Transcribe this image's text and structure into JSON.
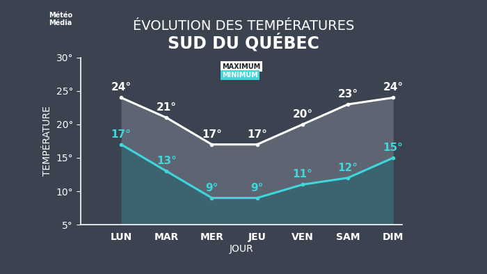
{
  "chart_data": {
    "type": "line",
    "title": "ÉVOLUTION DES TEMPÉRATURES",
    "subtitle": "SUD DU QUÉBEC",
    "x_label": "JOUR",
    "y_label": "TEMPÉRATURE",
    "annotations": [
      "Météo\nMédia"
    ],
    "categories": [
      "LUN",
      "MAR",
      "MER",
      "JEU",
      "VEN",
      "SAM",
      "DIM"
    ],
    "series": [
      {
        "name": "MAXIMUM",
        "color": "#ffffff",
        "values": [
          24,
          21,
          17,
          17,
          20,
          23,
          24
        ],
        "value_labels": [
          "24°",
          "21°",
          "17°",
          "17°",
          "20°",
          "23°",
          "24°"
        ]
      },
      {
        "name": "MINIMUM",
        "color": "#3fd6dc",
        "values": [
          17,
          13,
          9,
          9,
          11,
          12,
          15
        ],
        "value_labels": [
          "17°",
          "13°",
          "9°",
          "9°",
          "11°",
          "12°",
          "15°"
        ]
      }
    ],
    "ylim": [
      5,
      30
    ],
    "yticks": [
      {
        "value": 5,
        "label": "5°"
      },
      {
        "value": 10,
        "label": "10°"
      },
      {
        "value": 15,
        "label": "15°"
      },
      {
        "value": 20,
        "label": "20°"
      },
      {
        "value": 25,
        "label": "25°"
      },
      {
        "value": 30,
        "label": "30°"
      }
    ],
    "data_labels": true,
    "legend": "upper center",
    "grid": false,
    "marker": "o"
  }
}
